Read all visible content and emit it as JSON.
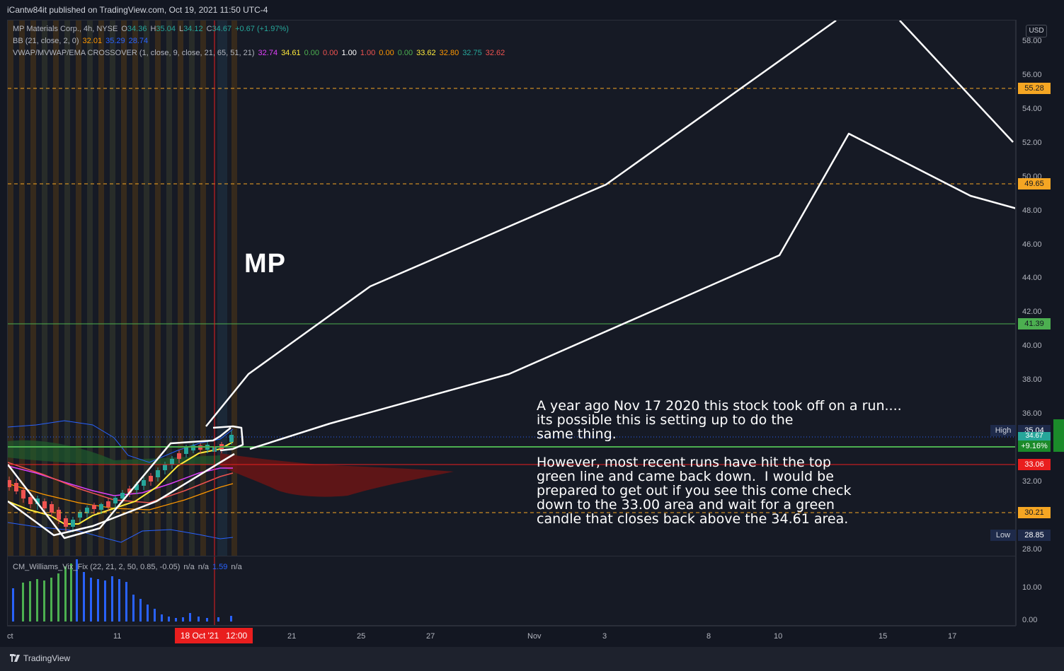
{
  "header": {
    "published": "iCantw84it published on TradingView.com, Oct 19, 2021 11:50 UTC-4"
  },
  "legend": {
    "symbol": {
      "name": "MP Materials Corp., 4h, NYSE",
      "o_label": "O",
      "o": "34.36",
      "h_label": "H",
      "h": "35.04",
      "l_label": "L",
      "l": "34.12",
      "c_label": "C",
      "c": "34.67",
      "change": "+0.67 (+1.97%)"
    },
    "bb": {
      "label": "BB (21, close, 2, 0)",
      "v1": "32.01",
      "v2": "35.29",
      "v3": "28.74"
    },
    "vwap": {
      "label": "VWAP/MVWAP/EMA CROSSOVER (1, close, 9, close, 21, 65, 51, 21)",
      "values": [
        "32.74",
        "34.61",
        "0.00",
        "0.00",
        "1.00",
        "1.00",
        "0.00",
        "0.00",
        "33.62",
        "32.80",
        "32.75",
        "32.62"
      ]
    },
    "vix": {
      "label": "CM_Williams_Vix_Fix (22, 21, 2, 50, 0.85, -0.05)",
      "v1": "n/a",
      "v2": "n/a",
      "v3": "1.59",
      "v4": "n/a"
    }
  },
  "annotation": {
    "title": "MP",
    "para1": [
      "A year ago Nov 17 2020 this stock took off on a run....",
      "its possible this is setting up to do the",
      "same thing."
    ],
    "para2": [
      "However, most recent runs have hit the top",
      "green line and came back down.  I would be",
      "prepared to get out if you see this come check",
      "down to the 33.00 area and wait for a green",
      "candle that closes back above the 34.61 area."
    ]
  },
  "price_axis": {
    "currency": "USD",
    "ticks": [
      "58.00",
      "56.00",
      "54.00",
      "52.00",
      "50.00",
      "48.00",
      "46.00",
      "44.00",
      "42.00",
      "40.00",
      "38.00",
      "36.00",
      "32.00",
      "30.00",
      "28.00"
    ],
    "levels": {
      "l5528": {
        "value": "55.28",
        "color": "#f5a623"
      },
      "l4965": {
        "value": "49.65",
        "color": "#f5a623"
      },
      "l4139": {
        "value": "41.39",
        "color": "#4caf50"
      },
      "l3306": {
        "value": "33.06",
        "color": "#e91e1e"
      },
      "l3021": {
        "value": "30.21",
        "color": "#f5a623"
      }
    },
    "high_label": "High",
    "high_value": "35.04",
    "low_label": "Low",
    "low_value": "28.85",
    "current": "34.67",
    "current_pct": "+9.16%"
  },
  "vix_axis": {
    "ticks": [
      "10.00",
      "0.00"
    ]
  },
  "time_axis": {
    "ticks": [
      "ct",
      "11",
      "21",
      "25",
      "27",
      "Nov",
      "3",
      "8",
      "10",
      "15",
      "17"
    ],
    "highlight": "18 Oct '21   12:00"
  },
  "footer": {
    "brand": "TradingView"
  },
  "colors": {
    "background": "#131722",
    "up": "#26a69a",
    "down": "#ef5350",
    "green_level": "#4caf50",
    "red_level": "#e91e1e",
    "orange_level": "#f5a623"
  }
}
